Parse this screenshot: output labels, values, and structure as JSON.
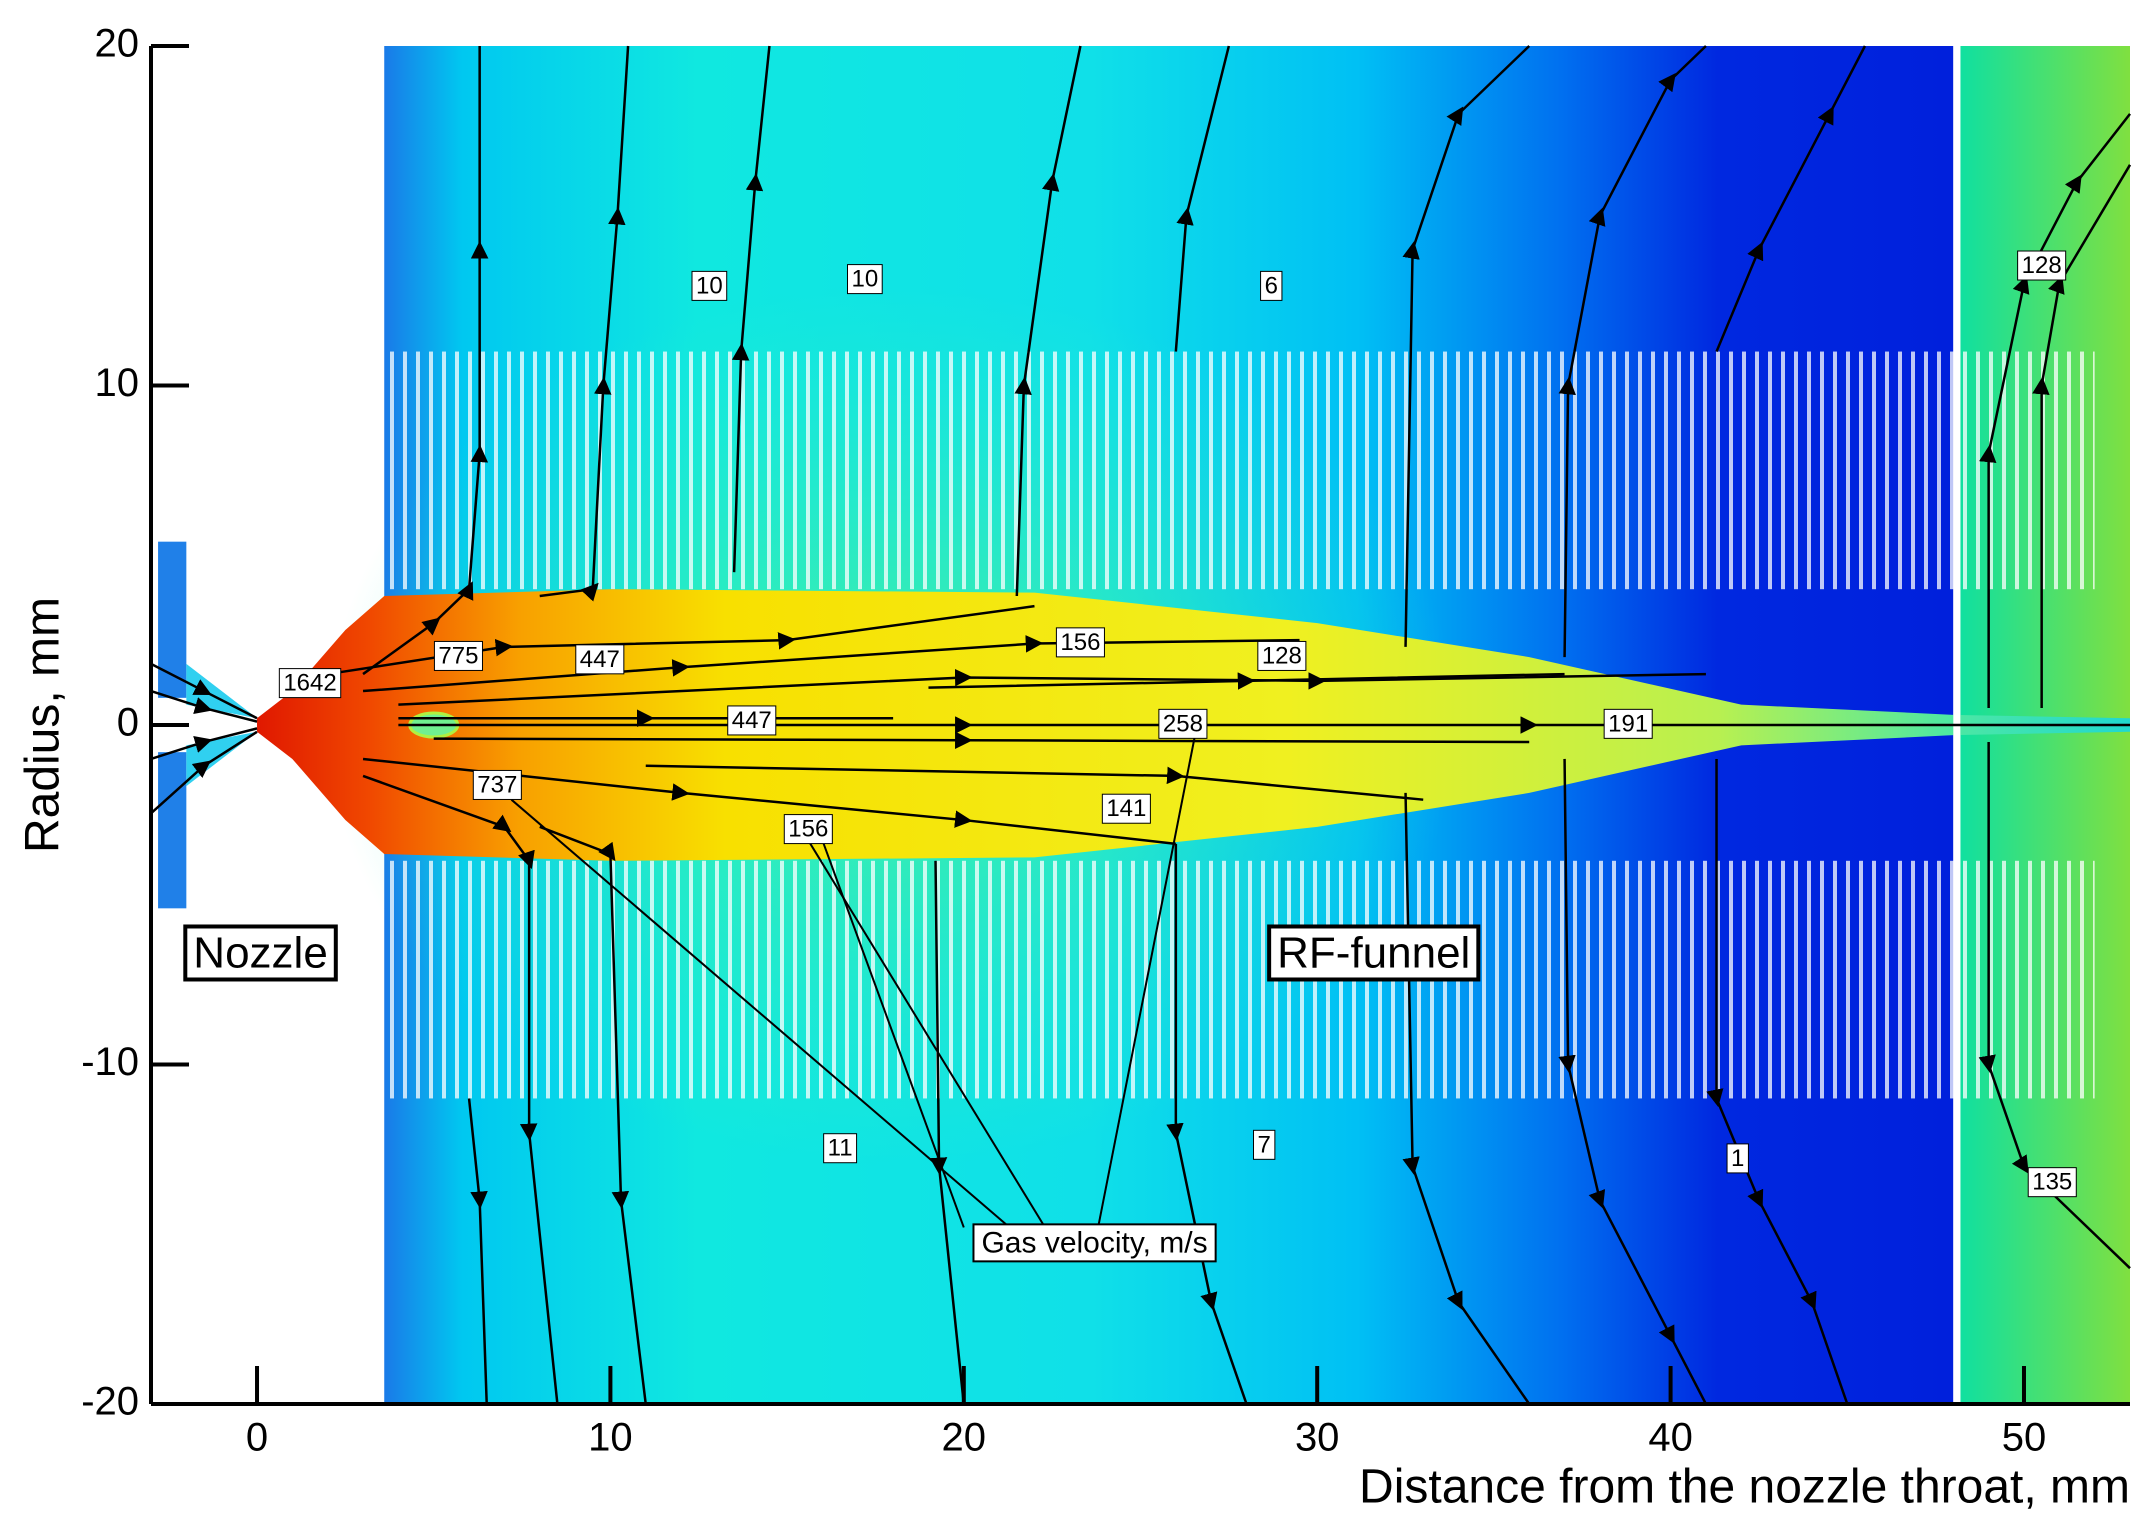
{
  "chart_data": {
    "type": "contour",
    "x_label": "Distance from the nozzle throat, mm",
    "y_label": "Radius, mm",
    "xlim": [
      -3,
      53
    ],
    "ylim": [
      -20,
      20
    ],
    "xticks": [
      0,
      10,
      20,
      30,
      40,
      50
    ],
    "yticks": [
      -20,
      -10,
      0,
      10,
      20
    ],
    "contour_labels": [
      10,
      10,
      6,
      1642,
      775,
      447,
      156,
      128,
      447,
      258,
      191,
      737,
      156,
      141,
      11,
      7,
      1,
      128,
      135
    ],
    "annotations": [
      "Nozzle",
      "RF-funnel",
      "Gas velocity, m/s"
    ]
  }
}
